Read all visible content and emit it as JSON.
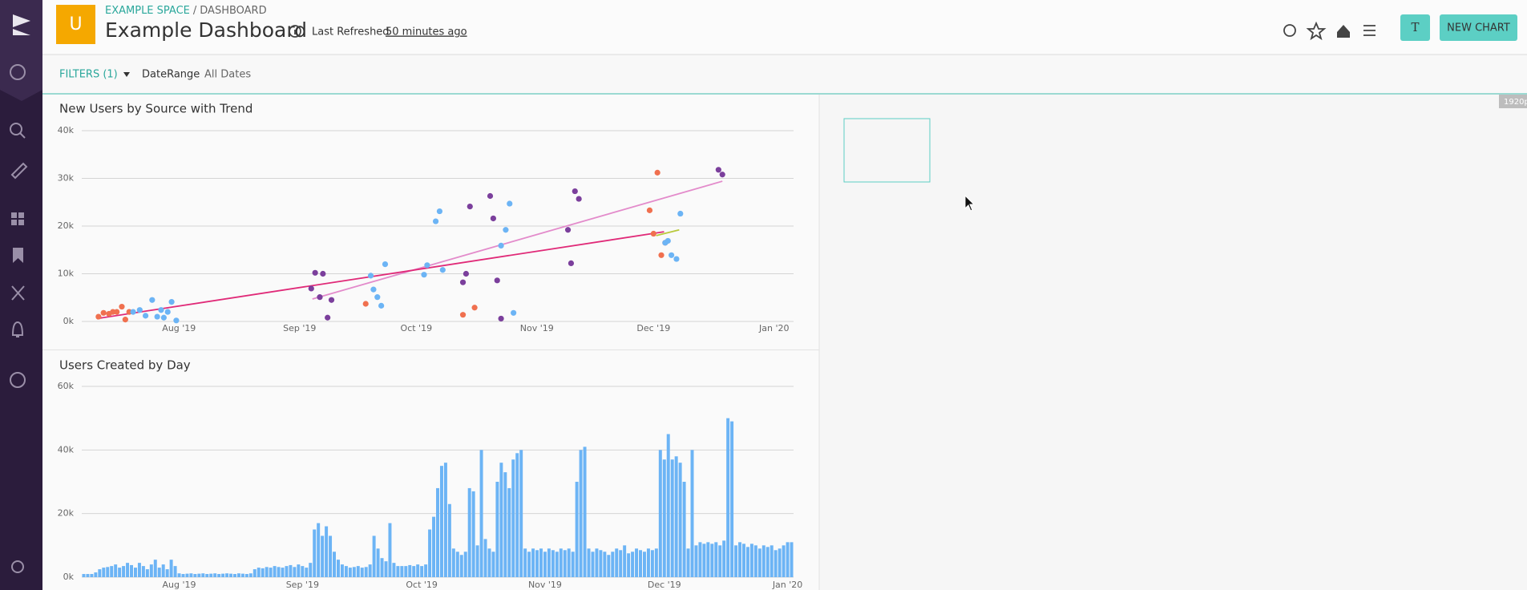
{
  "user_initial": "U",
  "header": {
    "space": "EXAMPLE SPACE",
    "separator": "/",
    "section": "DASHBOARD",
    "title": "Example Dashboard",
    "last_refreshed_label": "Last Refreshed",
    "last_refreshed_value": "50 minutes ago"
  },
  "buttons": {
    "avatar": "T",
    "new_chart": "NEW CHART"
  },
  "filters": {
    "label": "FILTERS (1)",
    "field": "DateRange",
    "value": "All Dates"
  },
  "badge": "1920p",
  "chart_data": [
    {
      "type": "scatter",
      "title": "New Users by Source with Trend",
      "xlim": [
        6,
        189
      ],
      "xticks": [
        {
          "value": 31,
          "label": "Aug '19"
        },
        {
          "value": 62,
          "label": "Sep '19"
        },
        {
          "value": 92,
          "label": "Oct '19"
        },
        {
          "value": 123,
          "label": "Nov '19"
        },
        {
          "value": 153,
          "label": "Dec '19"
        },
        {
          "value": 184,
          "label": "Jan '20"
        }
      ],
      "ylim": [
        0,
        40000
      ],
      "yticks": [
        {
          "value": 0,
          "label": "0k"
        },
        {
          "value": 10000,
          "label": "10k"
        },
        {
          "value": 20000,
          "label": "20k"
        },
        {
          "value": 30000,
          "label": "30k"
        },
        {
          "value": 40000,
          "label": "40k"
        }
      ],
      "grid": true,
      "series": [
        {
          "color": "#f0704f",
          "x": [
            10.3,
            11.6,
            13,
            14,
            15,
            16.3,
            17.2,
            18.2,
            79,
            104,
            107,
            152,
            154,
            153,
            155,
            156
          ],
          "values": [
            1000,
            1800,
            1600,
            2000,
            2000,
            3100,
            400,
            2000,
            3700,
            1400,
            2900,
            23300,
            31200,
            18400,
            13900,
            16500
          ]
        },
        {
          "color": "#6cb4f5",
          "x": [
            19.2,
            20.9,
            22.4,
            24.1,
            25.4,
            26.4,
            27.1,
            28.1,
            29.1,
            30.3,
            80.3,
            81,
            82,
            83,
            84,
            94,
            94.8,
            97,
            98,
            98.8,
            113.8,
            115,
            116,
            117,
            156,
            156.7,
            157.6,
            158.9,
            159.9
          ],
          "values": [
            2000,
            2400,
            1200,
            4500,
            1000,
            2400,
            800,
            2000,
            4100,
            200,
            9600,
            6700,
            5100,
            3300,
            12000,
            9800,
            11800,
            21000,
            23100,
            10800,
            15900,
            19200,
            24700,
            1800,
            16500,
            16900,
            13900,
            13100,
            22600
          ]
        },
        {
          "color": "#7b3f9c",
          "x": [
            65,
            66,
            67.2,
            68,
            69.2,
            70.2,
            104,
            104.8,
            105.8,
            111,
            111.8,
            112.8,
            113.8,
            131,
            131.8,
            132.8,
            133.8,
            169.7,
            170.7
          ],
          "values": [
            6900,
            10200,
            5100,
            10000,
            800,
            4500,
            8200,
            10000,
            24100,
            26300,
            21600,
            8600,
            600,
            19200,
            12200,
            27300,
            25700,
            31800,
            30800
          ]
        }
      ],
      "trends": [
        {
          "color": "#e38bcb",
          "x": [
            65.3,
            170.7
          ],
          "values": [
            4700,
            29400
          ]
        },
        {
          "color": "#e02a78",
          "x": [
            9.9,
            155.7
          ],
          "values": [
            600,
            18800
          ]
        },
        {
          "color": "#b9c93c",
          "x": [
            153.7,
            159.6
          ],
          "values": [
            18000,
            19200
          ]
        }
      ]
    },
    {
      "type": "bar",
      "title": "Users Created by Day",
      "color": "#6cb4f5",
      "ylim": [
        0,
        60000
      ],
      "yticks": [
        {
          "value": 0,
          "label": "0k"
        },
        {
          "value": 20000,
          "label": "20k"
        },
        {
          "value": 40000,
          "label": "40k"
        },
        {
          "value": 60000,
          "label": "60k"
        }
      ],
      "grid": true,
      "categories": [
        null,
        null,
        null,
        null,
        null,
        null,
        null,
        null,
        null,
        null,
        null,
        null,
        null,
        null,
        null,
        null,
        null,
        null,
        null,
        null,
        null,
        null,
        null,
        null,
        "Aug '19",
        null,
        null,
        null,
        null,
        null,
        null,
        null,
        null,
        null,
        null,
        null,
        null,
        null,
        null,
        null,
        null,
        null,
        null,
        null,
        null,
        null,
        null,
        null,
        null,
        null,
        null,
        null,
        null,
        null,
        null,
        "Sep '19",
        null,
        null,
        null,
        null,
        null,
        null,
        null,
        null,
        null,
        null,
        null,
        null,
        null,
        null,
        null,
        null,
        null,
        null,
        null,
        null,
        null,
        null,
        null,
        null,
        null,
        null,
        null,
        null,
        null,
        "Oct '19",
        null,
        null,
        null,
        null,
        null,
        null,
        null,
        null,
        null,
        null,
        null,
        null,
        null,
        null,
        null,
        null,
        null,
        null,
        null,
        null,
        null,
        null,
        null,
        null,
        null,
        null,
        null,
        null,
        null,
        null,
        "Nov '19",
        null,
        null,
        null,
        null,
        null,
        null,
        null,
        null,
        null,
        null,
        null,
        null,
        null,
        null,
        null,
        null,
        null,
        null,
        null,
        null,
        null,
        null,
        null,
        null,
        null,
        null,
        null,
        null,
        null,
        "Dec '19",
        null,
        null,
        null,
        null,
        null,
        null,
        null,
        null,
        null,
        null,
        null,
        null,
        null,
        null,
        null,
        null,
        null,
        null,
        null,
        null,
        null,
        null,
        null,
        null,
        null,
        null,
        null,
        null,
        null,
        null,
        "Jan '20",
        null
      ],
      "values": [
        1000,
        1000,
        1000,
        1500,
        2500,
        3000,
        3200,
        3500,
        4000,
        3000,
        3500,
        4500,
        3800,
        3000,
        4500,
        3500,
        2500,
        4000,
        5500,
        3000,
        4000,
        2500,
        5500,
        3500,
        1200,
        1000,
        1100,
        1200,
        1000,
        1100,
        1200,
        1000,
        1100,
        1200,
        1000,
        1100,
        1200,
        1100,
        1000,
        1200,
        1100,
        1000,
        1200,
        2500,
        3000,
        2800,
        3200,
        3000,
        3500,
        3200,
        3000,
        3500,
        3800,
        3200,
        4000,
        3500,
        3000,
        4500,
        15000,
        17000,
        13000,
        16000,
        13000,
        8000,
        5500,
        4000,
        3500,
        3000,
        3200,
        3500,
        3000,
        3200,
        4000,
        13000,
        9000,
        6000,
        5000,
        17000,
        4500,
        3500,
        3500,
        3500,
        3800,
        3500,
        4000,
        3500,
        4000,
        15000,
        19000,
        28000,
        35000,
        36000,
        23000,
        9000,
        8000,
        7000,
        8000,
        28000,
        27000,
        10000,
        40000,
        12000,
        9000,
        8000,
        30000,
        36000,
        33000,
        28000,
        37000,
        39000,
        40000,
        9000,
        8000,
        9000,
        8500,
        9000,
        8000,
        9000,
        8500,
        8000,
        9000,
        8500,
        9000,
        8000,
        30000,
        40000,
        41000,
        9000,
        8000,
        9000,
        8500,
        8000,
        7000,
        8000,
        9000,
        8500,
        10000,
        7500,
        8000,
        9000,
        8500,
        8000,
        9000,
        8500,
        9000,
        40000,
        37000,
        45000,
        37000,
        38000,
        36000,
        30000,
        9000,
        40000,
        10000,
        11000,
        10500,
        11000,
        10500,
        11000,
        10000,
        11500,
        50000,
        49000,
        10000,
        11000,
        10500,
        9500,
        10500,
        10000,
        9000,
        10000,
        9500,
        10000,
        8500,
        9000,
        10000,
        11000,
        11000
      ]
    }
  ]
}
